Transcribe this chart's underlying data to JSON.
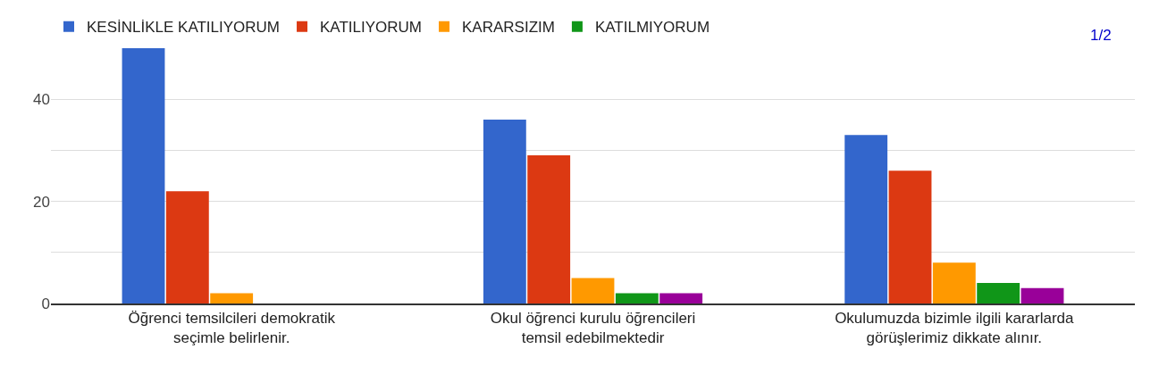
{
  "chart_data": {
    "type": "bar",
    "categories": [
      "Öğrenci temsilcileri demokratik seçimle belirlenir.",
      "Okul öğrenci kurulu öğrencileri temsil edebilmektedir",
      "Okulumuzda bizimle ilgili kararlarda görüşlerimiz dikkate alınır."
    ],
    "series": [
      {
        "name": "KESİNLİKLE KATILIYORUM",
        "color": "#3366cc",
        "values": [
          50,
          36,
          33
        ]
      },
      {
        "name": "KATILIYORUM",
        "color": "#dc3912",
        "values": [
          22,
          29,
          26
        ]
      },
      {
        "name": "KARARSIZIM",
        "color": "#ff9900",
        "values": [
          2,
          5,
          8
        ]
      },
      {
        "name": "KATILMIYORUM",
        "color": "#109618",
        "values": [
          0,
          2,
          4
        ]
      },
      {
        "color": "#990099",
        "values": [
          0,
          2,
          3
        ]
      }
    ],
    "ylim": [
      0,
      50
    ],
    "yticks": [
      0,
      {
        "value": 10,
        "label": null
      },
      20,
      {
        "value": 30,
        "label": null
      },
      40
    ],
    "grid": "y",
    "legend": "top",
    "annotations": [
      "1/2"
    ]
  }
}
